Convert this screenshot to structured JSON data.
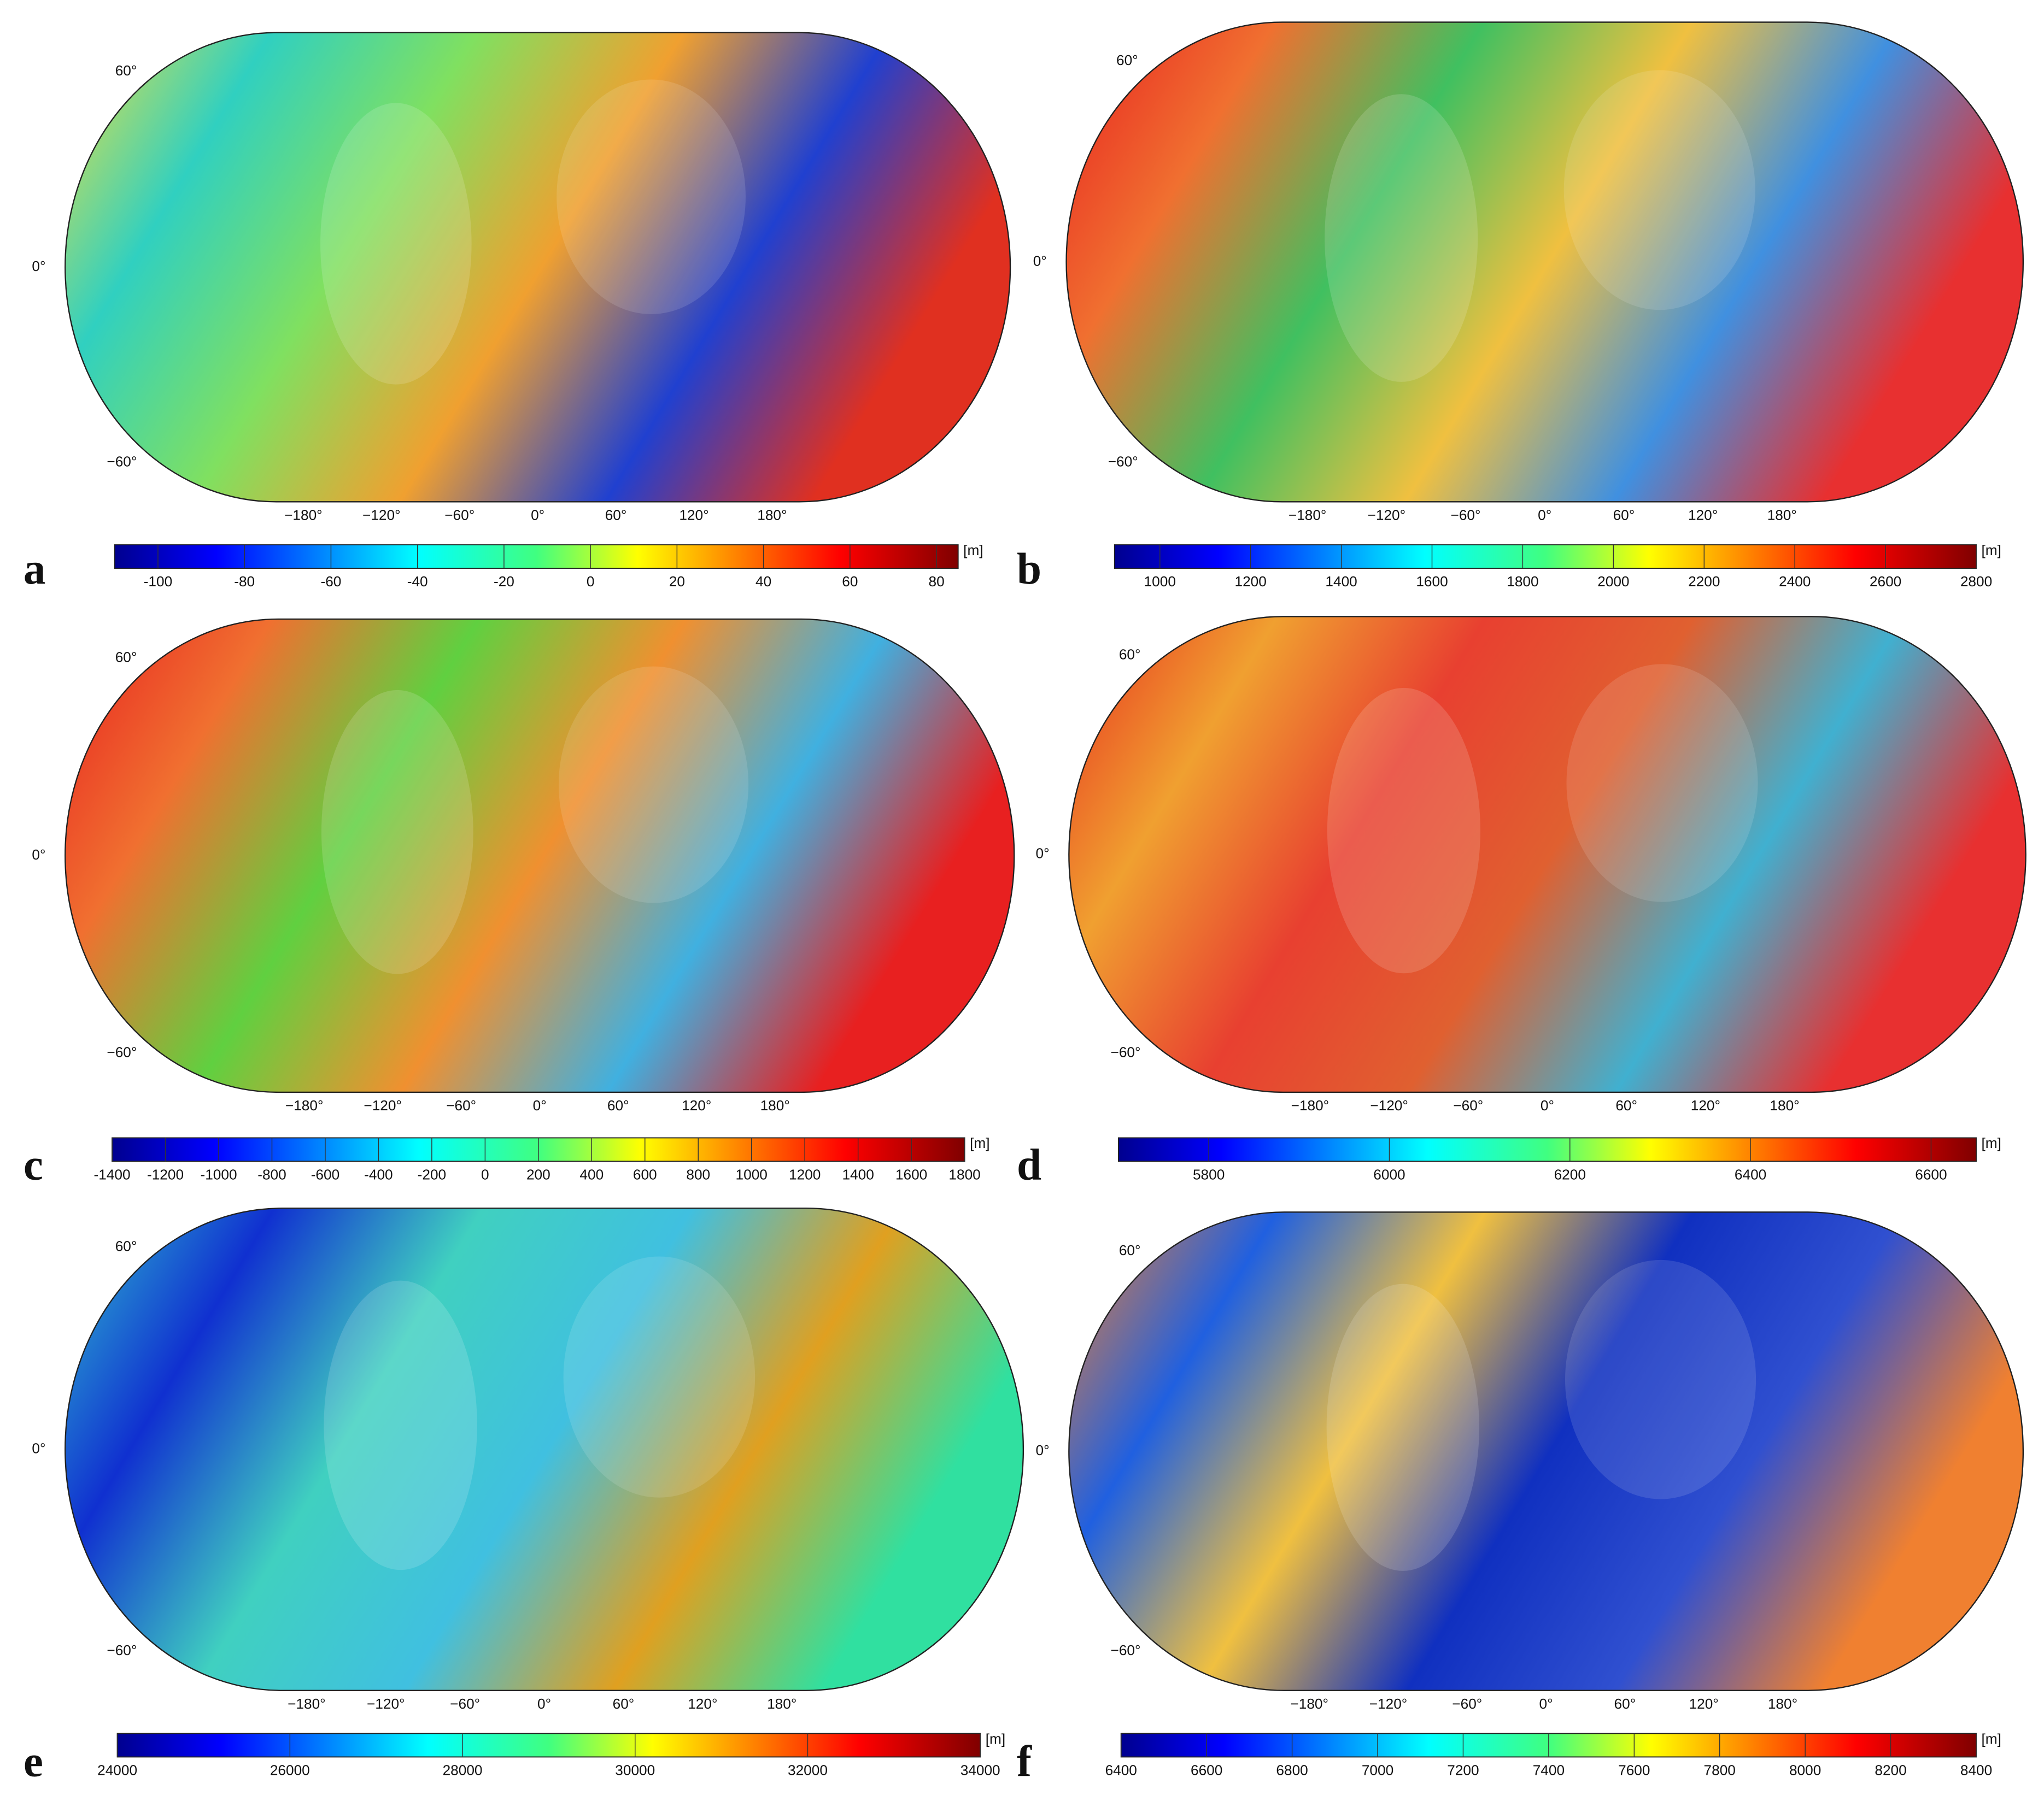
{
  "panels": [
    {
      "label": "a",
      "lat_labels": [
        "60°",
        "0°",
        "−60°"
      ],
      "lon_labels": [
        "−180°",
        "−120°",
        "−60°",
        "0°",
        "60°",
        "120°",
        "180°"
      ],
      "colorbar": {
        "unit": "[m]",
        "lim": [
          -110,
          85
        ],
        "ticks": [
          -100,
          -80,
          -60,
          -40,
          -20,
          0,
          20,
          40,
          60,
          80
        ]
      }
    },
    {
      "label": "b",
      "lat_labels": [
        "60°",
        "0°",
        "−60°"
      ],
      "lon_labels": [
        "−180°",
        "−120°",
        "−60°",
        "0°",
        "60°",
        "120°",
        "180°"
      ],
      "colorbar": {
        "unit": "[m]",
        "lim": [
          900,
          2800
        ],
        "ticks": [
          1000,
          1200,
          1400,
          1600,
          1800,
          2000,
          2200,
          2400,
          2600,
          2800
        ]
      }
    },
    {
      "label": "c",
      "lat_labels": [
        "60°",
        "0°",
        "−60°"
      ],
      "lon_labels": [
        "−180°",
        "−120°",
        "−60°",
        "0°",
        "60°",
        "120°",
        "180°"
      ],
      "colorbar": {
        "unit": "[m]",
        "lim": [
          -1400,
          1800
        ],
        "ticks": [
          -1400,
          -1200,
          -1000,
          -800,
          -600,
          -400,
          -200,
          0,
          200,
          400,
          600,
          800,
          1000,
          1200,
          1400,
          1600,
          1800
        ]
      }
    },
    {
      "label": "d",
      "lat_labels": [
        "60°",
        "0°",
        "−60°"
      ],
      "lon_labels": [
        "−180°",
        "−120°",
        "−60°",
        "0°",
        "60°",
        "120°",
        "180°"
      ],
      "colorbar": {
        "unit": "[m]",
        "lim": [
          5700,
          6650
        ],
        "ticks": [
          5800,
          6000,
          6200,
          6400,
          6600
        ]
      }
    },
    {
      "label": "e",
      "lat_labels": [
        "60°",
        "0°",
        "−60°"
      ],
      "lon_labels": [
        "−180°",
        "−120°",
        "−60°",
        "0°",
        "60°",
        "120°",
        "180°"
      ],
      "colorbar": {
        "unit": "[m]",
        "lim": [
          24000,
          34000
        ],
        "ticks": [
          24000,
          26000,
          28000,
          30000,
          32000,
          34000
        ]
      }
    },
    {
      "label": "f",
      "lat_labels": [
        "60°",
        "0°",
        "−60°"
      ],
      "lon_labels": [
        "−180°",
        "−120°",
        "−60°",
        "0°",
        "60°",
        "120°",
        "180°"
      ],
      "colorbar": {
        "unit": "[m]",
        "lim": [
          6400,
          8400
        ],
        "ticks": [
          6400,
          6600,
          6800,
          7000,
          7200,
          7400,
          7600,
          7800,
          8000,
          8200,
          8400
        ]
      }
    }
  ]
}
